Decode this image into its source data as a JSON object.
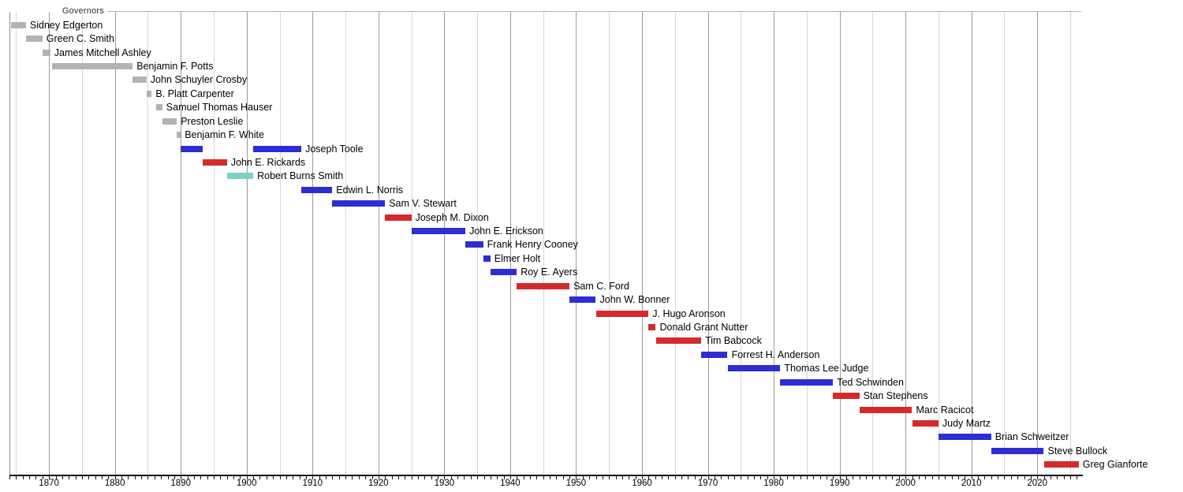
{
  "chart_data": {
    "type": "timeline",
    "title": "Governors",
    "axis": {
      "start_year": 1864,
      "end_year": 2026.8,
      "major_ticks": [
        1870,
        1880,
        1890,
        1900,
        1910,
        1920,
        1930,
        1940,
        1950,
        1960,
        1970,
        1980,
        1990,
        2000,
        2010,
        2020
      ],
      "minor_tick_step": 1,
      "gridline_step": 5,
      "grid": true
    },
    "colors": {
      "territorial": "#b3b3b3",
      "democratic": "#2d2dd2",
      "republican": "#d42a2a",
      "populist": "#7fcfc5",
      "grid_major": "#9a9a9a",
      "grid_minor": "#d7d7d7",
      "axis": "#101010"
    },
    "governors": [
      {
        "name": "Sidney Edgerton",
        "party": "territorial",
        "terms": [
          [
            1864.2,
            1866.5
          ]
        ]
      },
      {
        "name": "Green C. Smith",
        "party": "territorial",
        "terms": [
          [
            1866.5,
            1869.0
          ]
        ]
      },
      {
        "name": "James Mitchell Ashley",
        "party": "territorial",
        "terms": [
          [
            1869.0,
            1870.2
          ]
        ]
      },
      {
        "name": "Benjamin F. Potts",
        "party": "territorial",
        "terms": [
          [
            1870.5,
            1882.7
          ]
        ]
      },
      {
        "name": "John Schuyler Crosby",
        "party": "territorial",
        "terms": [
          [
            1882.7,
            1884.8
          ]
        ]
      },
      {
        "name": "B. Platt Carpenter",
        "party": "territorial",
        "terms": [
          [
            1884.8,
            1885.6
          ]
        ]
      },
      {
        "name": "Samuel Thomas Hauser",
        "party": "territorial",
        "terms": [
          [
            1886.2,
            1887.2
          ]
        ]
      },
      {
        "name": "Preston Leslie",
        "party": "territorial",
        "terms": [
          [
            1887.2,
            1889.4
          ]
        ]
      },
      {
        "name": "Benjamin F. White",
        "party": "territorial",
        "terms": [
          [
            1889.4,
            1890.0
          ]
        ]
      },
      {
        "name": "Joseph Toole",
        "party": "democratic",
        "terms": [
          [
            1890.0,
            1893.3
          ],
          [
            1901.0,
            1908.3
          ]
        ]
      },
      {
        "name": "John E. Rickards",
        "party": "republican",
        "terms": [
          [
            1893.3,
            1897.0
          ]
        ]
      },
      {
        "name": "Robert Burns Smith",
        "party": "populist",
        "terms": [
          [
            1897.0,
            1901.0
          ]
        ]
      },
      {
        "name": "Edwin L. Norris",
        "party": "democratic",
        "terms": [
          [
            1908.3,
            1913.0
          ]
        ]
      },
      {
        "name": "Sam V. Stewart",
        "party": "democratic",
        "terms": [
          [
            1913.0,
            1921.0
          ]
        ]
      },
      {
        "name": "Joseph M. Dixon",
        "party": "republican",
        "terms": [
          [
            1921.0,
            1925.0
          ]
        ]
      },
      {
        "name": "John E. Erickson",
        "party": "democratic",
        "terms": [
          [
            1925.0,
            1933.2
          ]
        ]
      },
      {
        "name": "Frank Henry Cooney",
        "party": "democratic",
        "terms": [
          [
            1933.2,
            1935.9
          ]
        ]
      },
      {
        "name": "Elmer Holt",
        "party": "democratic",
        "terms": [
          [
            1935.9,
            1937.0
          ]
        ]
      },
      {
        "name": "Roy E. Ayers",
        "party": "democratic",
        "terms": [
          [
            1937.0,
            1941.0
          ]
        ]
      },
      {
        "name": "Sam C. Ford",
        "party": "republican",
        "terms": [
          [
            1941.0,
            1949.0
          ]
        ]
      },
      {
        "name": "John W. Bonner",
        "party": "democratic",
        "terms": [
          [
            1949.0,
            1953.0
          ]
        ]
      },
      {
        "name": "J. Hugo Aronson",
        "party": "republican",
        "terms": [
          [
            1953.0,
            1961.0
          ]
        ]
      },
      {
        "name": "Donald Grant Nutter",
        "party": "republican",
        "terms": [
          [
            1961.0,
            1962.1
          ]
        ]
      },
      {
        "name": "Tim Babcock",
        "party": "republican",
        "terms": [
          [
            1962.1,
            1969.0
          ]
        ]
      },
      {
        "name": "Forrest H. Anderson",
        "party": "democratic",
        "terms": [
          [
            1969.0,
            1973.0
          ]
        ]
      },
      {
        "name": "Thomas Lee Judge",
        "party": "democratic",
        "terms": [
          [
            1973.0,
            1981.0
          ]
        ]
      },
      {
        "name": "Ted Schwinden",
        "party": "democratic",
        "terms": [
          [
            1981.0,
            1989.0
          ]
        ]
      },
      {
        "name": "Stan Stephens",
        "party": "republican",
        "terms": [
          [
            1989.0,
            1993.0
          ]
        ]
      },
      {
        "name": "Marc Racicot",
        "party": "republican",
        "terms": [
          [
            1993.0,
            2001.0
          ]
        ]
      },
      {
        "name": "Judy Martz",
        "party": "republican",
        "terms": [
          [
            2001.0,
            2005.0
          ]
        ]
      },
      {
        "name": "Brian Schweitzer",
        "party": "democratic",
        "terms": [
          [
            2005.0,
            2013.0
          ]
        ]
      },
      {
        "name": "Steve Bullock",
        "party": "democratic",
        "terms": [
          [
            2013.0,
            2021.0
          ]
        ]
      },
      {
        "name": "Greg Gianforte",
        "party": "republican",
        "terms": [
          [
            2021.0,
            2026.3
          ]
        ]
      }
    ]
  }
}
